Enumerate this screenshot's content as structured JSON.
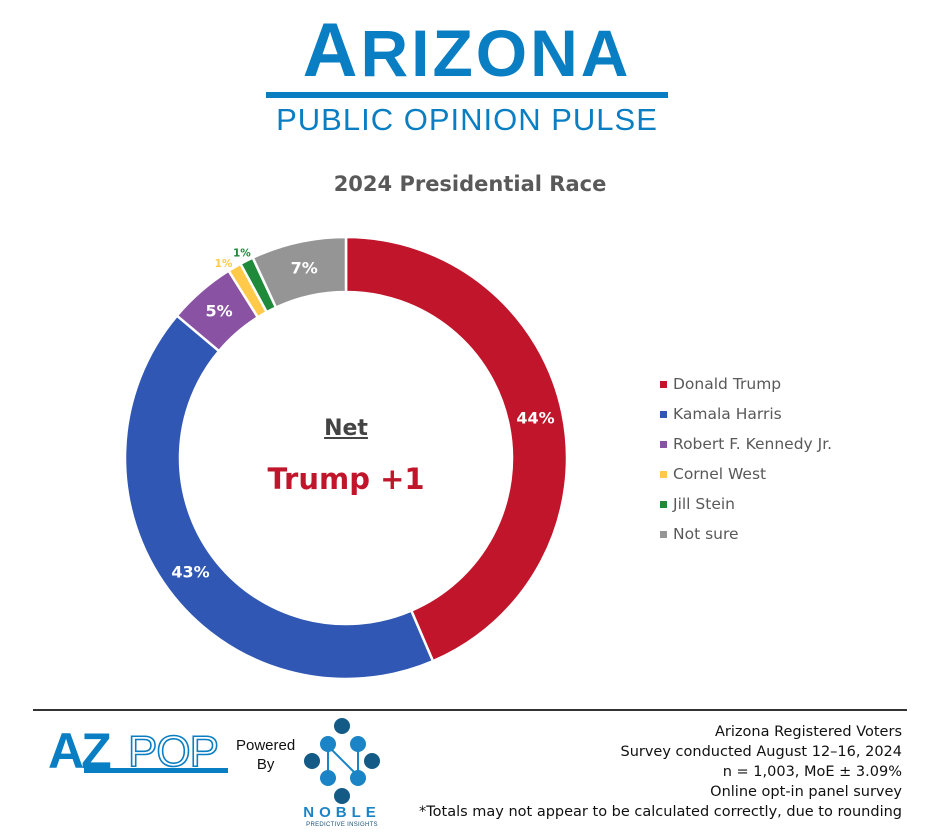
{
  "header": {
    "brand_title_first": "A",
    "brand_title_rest": "RIZONA",
    "brand_subtitle": "PUBLIC OPINION PULSE"
  },
  "chart_data": {
    "type": "pie",
    "subtype": "donut",
    "title": "2024 Presidential Race",
    "categories": [
      "Donald Trump",
      "Kamala Harris",
      "Robert F. Kennedy Jr.",
      "Cornel West",
      "Jill Stein",
      "Not sure"
    ],
    "values": [
      44,
      43,
      5,
      1,
      1,
      7
    ],
    "labels": [
      "44%",
      "43%",
      "5%",
      "1%",
      "1%",
      "7%"
    ],
    "colors": [
      "#c0152a",
      "#2f57b3",
      "#8a52a2",
      "#ffc94a",
      "#1e8a3a",
      "#959595"
    ],
    "unit": "%",
    "start_angle": "12 o'clock, clockwise",
    "legend_position": "right",
    "center_annotation": {
      "heading": "Net",
      "value": "Trump +1"
    }
  },
  "center": {
    "heading": "Net",
    "value": "Trump +1"
  },
  "legend": {
    "items": [
      {
        "label": "Donald Trump",
        "color": "#c0152a"
      },
      {
        "label": "Kamala Harris",
        "color": "#2f57b3"
      },
      {
        "label": "Robert F. Kennedy Jr.",
        "color": "#8a52a2"
      },
      {
        "label": "Cornel West",
        "color": "#ffc94a"
      },
      {
        "label": "Jill Stein",
        "color": "#1e8a3a"
      },
      {
        "label": "Not sure",
        "color": "#959595"
      }
    ]
  },
  "footer": {
    "azpop_logo_a": "AZ",
    "azpop_logo_b": "POP",
    "powered_line1": "Powered",
    "powered_line2": "By",
    "noble_word": "NOBLE",
    "noble_sub": "PREDICTIVE INSIGHTS",
    "notes": [
      "Arizona Registered Voters",
      "Survey conducted August 12–16, 2024",
      "n = 1,003, MoE ± 3.09%",
      "Online opt-in panel survey",
      "*Totals may not appear to be calculated correctly, due to rounding"
    ]
  },
  "colors": {
    "brand_blue": "#0a7ec2",
    "title_gray": "#595959",
    "trump_red": "#c0152a"
  }
}
